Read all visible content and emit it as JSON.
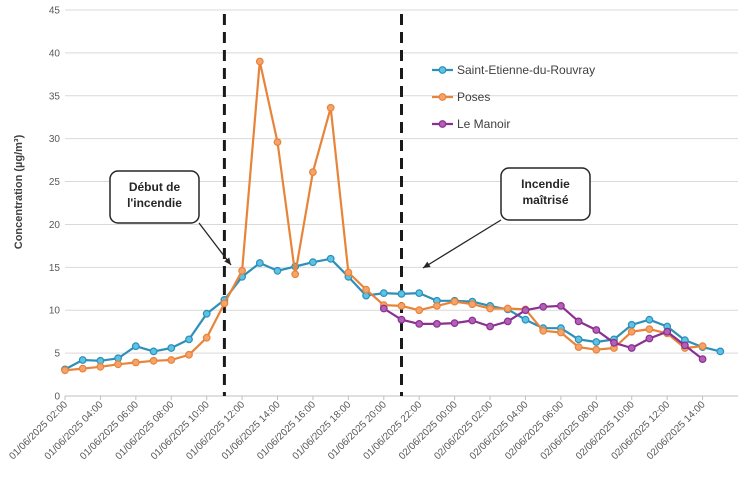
{
  "chart_data": {
    "type": "line",
    "ylabel": "Concentration (µg/m³)",
    "ylim": [
      0,
      45
    ],
    "yticks": [
      0,
      5,
      10,
      15,
      20,
      25,
      30,
      35,
      40,
      45
    ],
    "grid": "horizontal",
    "legend_position": "right",
    "x_tick_labels": [
      "01/06/2025 02:00",
      "01/06/2025 04:00",
      "01/06/2025 06:00",
      "01/06/2025 08:00",
      "01/06/2025 10:00",
      "01/06/2025 12:00",
      "01/06/2025 14:00",
      "01/06/2025 16:00",
      "01/06/2025 18:00",
      "01/06/2025 20:00",
      "01/06/2025 22:00",
      "02/06/2025 00:00",
      "02/06/2025 02:00",
      "02/06/2025 04:00",
      "02/06/2025 06:00",
      "02/06/2025 08:00",
      "02/06/2025 10:00",
      "02/06/2025 12:00",
      "02/06/2025 14:00"
    ],
    "x_tick_hours": [
      2,
      4,
      6,
      8,
      10,
      12,
      14,
      16,
      18,
      20,
      22,
      24,
      26,
      28,
      30,
      32,
      34,
      36,
      38
    ],
    "x_range_hours": [
      2,
      40
    ],
    "series": [
      {
        "name": "Saint-Etienne-du-Rouvray",
        "color": "#2e8fb8",
        "marker_fill": "#5bc3e6",
        "start_hour": 2,
        "values": [
          3.1,
          4.2,
          4.1,
          4.4,
          5.8,
          5.2,
          5.6,
          6.6,
          9.6,
          11.2,
          13.9,
          15.5,
          14.6,
          15.1,
          15.6,
          16.0,
          13.9,
          11.7,
          12.0,
          11.9,
          12.0,
          11.1,
          11.1,
          11.0,
          10.5,
          10.1,
          8.9,
          7.9,
          7.9,
          6.6,
          6.3,
          6.6,
          8.3,
          8.9,
          8.1,
          6.5,
          5.7,
          5.2
        ]
      },
      {
        "name": "Poses",
        "color": "#e8843a",
        "marker_fill": "#f5a36a",
        "start_hour": 2,
        "values": [
          3.0,
          3.2,
          3.4,
          3.7,
          3.9,
          4.1,
          4.2,
          4.8,
          6.8,
          10.8,
          14.6,
          39.0,
          29.6,
          14.2,
          26.1,
          33.6,
          14.4,
          12.4,
          10.6,
          10.5,
          10.0,
          10.5,
          11.0,
          10.7,
          10.2,
          10.2,
          10.1,
          7.6,
          7.4,
          5.7,
          5.4,
          5.6,
          7.5,
          7.8,
          7.3,
          5.6,
          5.8
        ]
      },
      {
        "name": "Le Manoir",
        "color": "#8b2f91",
        "marker_fill": "#b15fb7",
        "start_hour": 20,
        "values": [
          10.2,
          8.9,
          8.4,
          8.4,
          8.5,
          8.8,
          8.1,
          8.7,
          10.0,
          10.4,
          10.5,
          8.7,
          7.7,
          6.2,
          5.6,
          6.7,
          7.5,
          5.9,
          4.3
        ]
      }
    ],
    "events": [
      {
        "hour": 11,
        "label_lines": [
          "Début de",
          "l'incendie"
        ]
      },
      {
        "hour": 21,
        "label_lines": [
          "Incendie",
          "maîtrisé"
        ]
      }
    ]
  }
}
